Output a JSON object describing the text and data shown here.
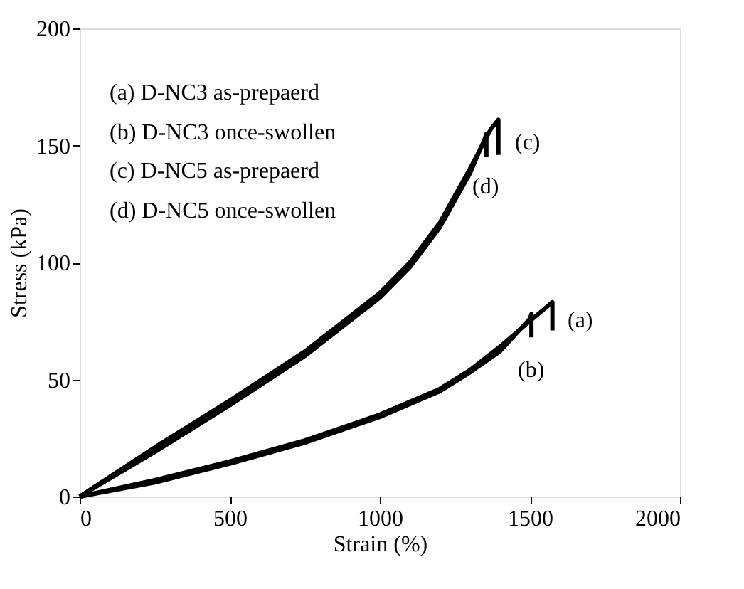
{
  "chart_data": {
    "type": "line",
    "xlabel": "Strain (%)",
    "ylabel": "Stress (kPa)",
    "xlim": [
      0,
      2000
    ],
    "xticks": [
      0,
      500,
      1000,
      1500,
      2000
    ],
    "ylim": [
      0,
      200
    ],
    "yticks": [
      0,
      50,
      100,
      150,
      200
    ],
    "grid": false,
    "line_style": "solid",
    "marker": "none",
    "series": [
      {
        "color": "#000000",
        "x": [
          0,
          250,
          500,
          750,
          1000,
          1200,
          1300,
          1400,
          1500,
          1575,
          1575
        ],
        "values": [
          0,
          7,
          15,
          24,
          35,
          46,
          54,
          64,
          75,
          83,
          71
        ]
      },
      {
        "color": "#000000",
        "x": [
          0,
          250,
          500,
          750,
          1000,
          1200,
          1300,
          1400,
          1500,
          1505,
          1505
        ],
        "values": [
          0,
          6,
          14,
          23,
          34,
          45,
          53,
          62,
          76,
          78,
          68
        ]
      },
      {
        "color": "#000000",
        "x": [
          0,
          250,
          500,
          750,
          1000,
          1100,
          1200,
          1300,
          1370,
          1395,
          1395
        ],
        "values": [
          0,
          21,
          41,
          62,
          87,
          100,
          117,
          140,
          157,
          161,
          146
        ]
      },
      {
        "color": "#000000",
        "x": [
          0,
          250,
          500,
          750,
          1000,
          1100,
          1200,
          1300,
          1350,
          1355,
          1355
        ],
        "values": [
          0,
          19,
          39,
          60,
          85,
          98,
          115,
          138,
          153,
          155,
          145
        ]
      }
    ],
    "annotations": [
      "(a) D-NC3 as-prepaerd",
      "(b) D-NC3 once-swollen",
      "(c) D-NC5 as-prepaerd",
      "(d) D-NC5 once-swollen",
      "(a)",
      "(b)",
      "(c)",
      "(d)"
    ]
  }
}
